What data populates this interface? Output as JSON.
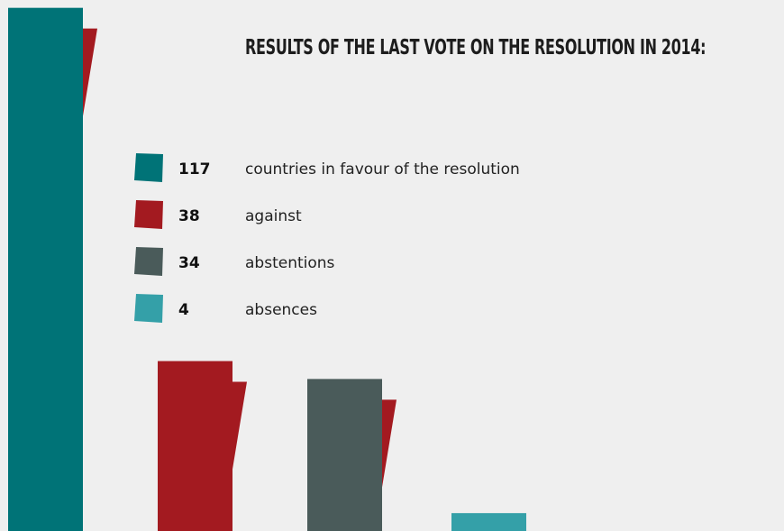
{
  "chart_data": {
    "type": "bar",
    "title": "Results of the last vote on the resolution in 2014:",
    "categories": [
      "countries in favour of the resolution",
      "against",
      "abstentions",
      "absences"
    ],
    "values": [
      117,
      38,
      34,
      4
    ],
    "series": [
      {
        "count_label": "117",
        "label": "countries in favour of the resolution",
        "value": 117,
        "color": "#007377"
      },
      {
        "count_label": "38",
        "label": "against",
        "value": 38,
        "color": "#a31a20"
      },
      {
        "count_label": "34",
        "label": "abstentions",
        "value": 34,
        "color": "#4a5b5a"
      },
      {
        "count_label": "4",
        "label": "absences",
        "value": 4,
        "color": "#34a0a8"
      }
    ],
    "accent_color": "#a31a20",
    "legend_position": "center",
    "grid": false
  }
}
